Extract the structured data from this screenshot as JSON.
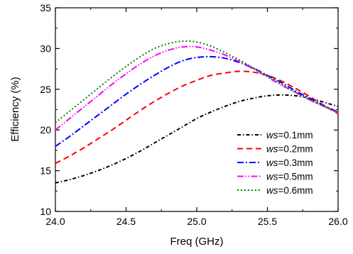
{
  "chart_data": {
    "type": "line",
    "title": "",
    "xlabel": "Freq (GHz)",
    "ylabel": "Efficiency (%)",
    "xlim": [
      24.0,
      26.0
    ],
    "ylim": [
      10,
      35
    ],
    "xticks": [
      24.0,
      24.5,
      25.0,
      25.5,
      26.0
    ],
    "xtick_labels": [
      "24.0",
      "24.5",
      "25.0",
      "25.5",
      "26.0"
    ],
    "yticks": [
      10,
      15,
      20,
      25,
      30,
      35
    ],
    "ytick_labels": [
      "10",
      "15",
      "20",
      "25",
      "30",
      "35"
    ],
    "grid": false,
    "legend_position": "bottom-right",
    "x": [
      24.0,
      24.1,
      24.2,
      24.3,
      24.4,
      24.5,
      24.6,
      24.7,
      24.8,
      24.9,
      25.0,
      25.1,
      25.2,
      25.3,
      25.4,
      25.5,
      25.6,
      25.7,
      25.8,
      25.9,
      26.0
    ],
    "series": [
      {
        "legend_italic": "ws",
        "legend_rest": "=0.1mm",
        "color": "#000000",
        "dash": "dashdot-dense",
        "values": [
          13.5,
          13.9,
          14.4,
          15.0,
          15.7,
          16.5,
          17.4,
          18.4,
          19.4,
          20.4,
          21.4,
          22.2,
          22.9,
          23.5,
          23.9,
          24.2,
          24.3,
          24.2,
          23.9,
          23.4,
          22.9
        ]
      },
      {
        "legend_italic": "ws",
        "legend_rest": "=0.2mm",
        "color": "#ff0000",
        "dash": "dash",
        "values": [
          15.9,
          16.8,
          17.8,
          18.9,
          20.0,
          21.2,
          22.4,
          23.5,
          24.5,
          25.4,
          26.1,
          26.7,
          27.0,
          27.2,
          27.1,
          26.7,
          26.0,
          25.1,
          24.1,
          23.0,
          22.0
        ]
      },
      {
        "legend_italic": "ws",
        "legend_rest": "=0.3mm",
        "color": "#0000ff",
        "dash": "dashdot",
        "values": [
          18.0,
          19.2,
          20.5,
          21.8,
          23.1,
          24.4,
          25.6,
          26.7,
          27.7,
          28.5,
          28.9,
          29.0,
          28.8,
          28.3,
          27.6,
          26.7,
          25.8,
          24.8,
          23.9,
          23.0,
          22.2
        ]
      },
      {
        "legend_italic": "ws",
        "legend_rest": "=0.5mm",
        "color": "#ff00ff",
        "dash": "dashdotdot",
        "values": [
          20.0,
          21.4,
          22.8,
          24.2,
          25.6,
          26.9,
          28.1,
          29.1,
          29.8,
          30.2,
          30.2,
          29.8,
          29.2,
          28.4,
          27.5,
          26.5,
          25.5,
          24.6,
          23.7,
          22.9,
          22.1
        ]
      },
      {
        "legend_italic": "ws",
        "legend_rest": "=0.6mm",
        "color": "#008000",
        "dash": "dot",
        "values": [
          20.9,
          22.3,
          23.7,
          25.1,
          26.5,
          27.8,
          29.0,
          30.0,
          30.6,
          30.9,
          30.8,
          30.3,
          29.5,
          28.6,
          27.6,
          26.6,
          25.6,
          24.6,
          23.7,
          22.9,
          22.2
        ]
      }
    ]
  }
}
